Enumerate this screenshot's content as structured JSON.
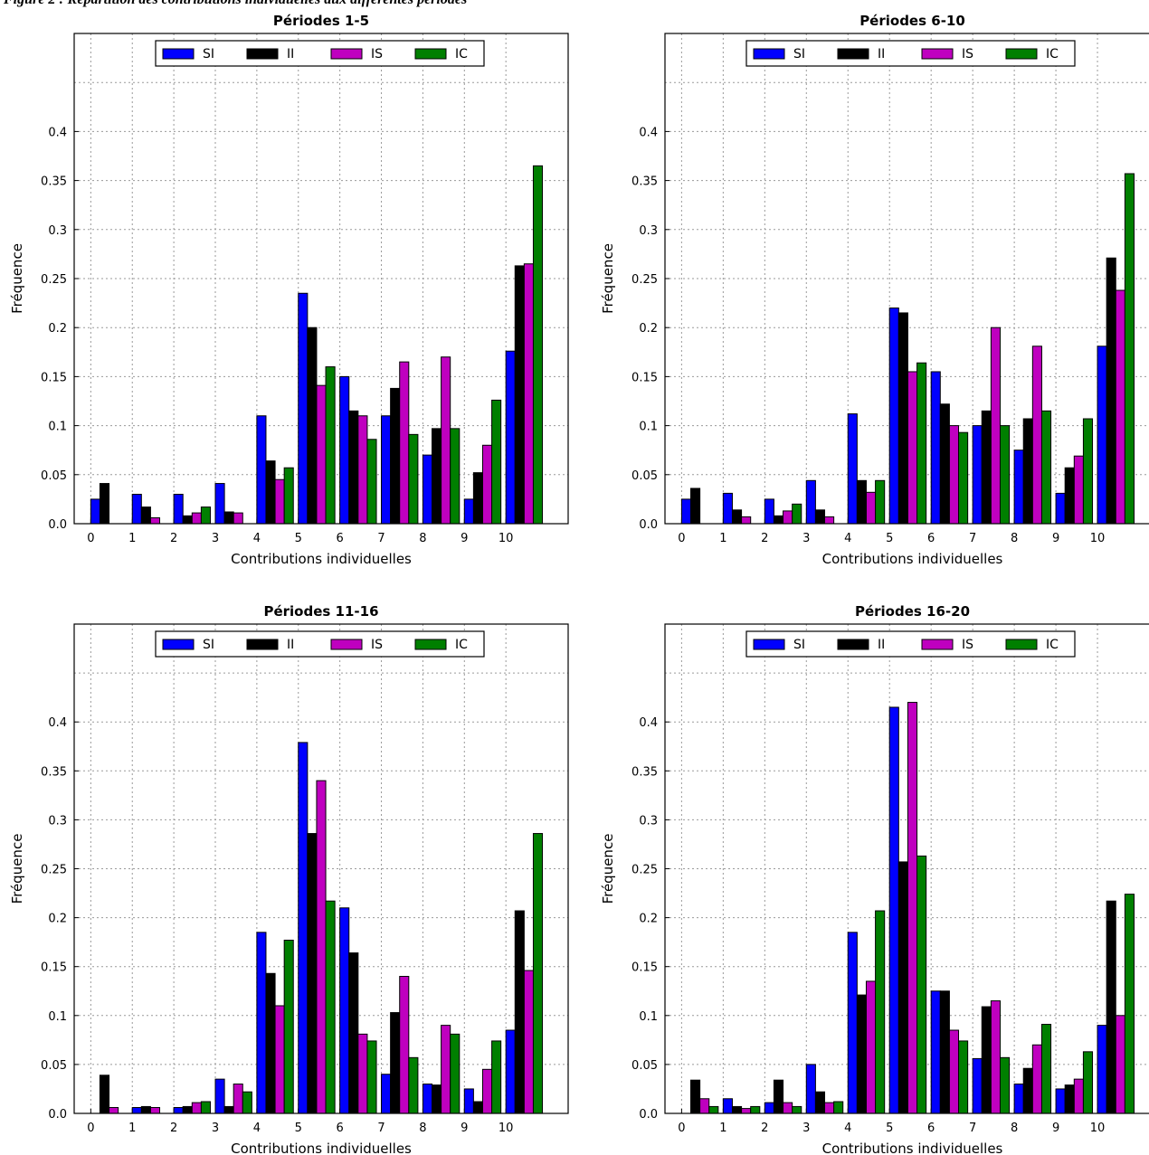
{
  "figure": {
    "caption": "Figure 2 : Répartition des contributions individuelles aux différentes périodes"
  },
  "colors": {
    "SI": "#0000ff",
    "II": "#000000",
    "IS": "#bf00bf",
    "IC": "#007f00"
  },
  "chart_data": [
    {
      "type": "bar",
      "title": "Périodes 1-5",
      "xlabel": "Contributions individuelles",
      "ylabel": "Fréquence",
      "categories": [
        "0",
        "1",
        "2",
        "3",
        "4",
        "5",
        "6",
        "7",
        "8",
        "9",
        "10"
      ],
      "xlim": [
        -0.4,
        11.5
      ],
      "ylim": [
        0,
        0.5
      ],
      "yticks": [
        "0.0",
        "0.05",
        "0.1",
        "0.15",
        "0.2",
        "0.25",
        "0.3",
        "0.35",
        "0.4"
      ],
      "grid": true,
      "legend": "top-center",
      "series": [
        {
          "name": "SI",
          "values": [
            0.025,
            0.03,
            0.03,
            0.041,
            0.11,
            0.235,
            0.15,
            0.11,
            0.07,
            0.025,
            0.176
          ]
        },
        {
          "name": "II",
          "values": [
            0.041,
            0.017,
            0.008,
            0.012,
            0.064,
            0.2,
            0.115,
            0.138,
            0.097,
            0.052,
            0.263
          ]
        },
        {
          "name": "IS",
          "values": [
            0.0,
            0.006,
            0.011,
            0.011,
            0.045,
            0.141,
            0.11,
            0.165,
            0.17,
            0.08,
            0.265
          ]
        },
        {
          "name": "IC",
          "values": [
            0.0,
            0.0,
            0.017,
            0.0,
            0.057,
            0.16,
            0.086,
            0.091,
            0.097,
            0.126,
            0.365
          ]
        }
      ]
    },
    {
      "type": "bar",
      "title": "Périodes 6-10",
      "xlabel": "Contributions individuelles",
      "ylabel": "Fréquence",
      "categories": [
        "0",
        "1",
        "2",
        "3",
        "4",
        "5",
        "6",
        "7",
        "8",
        "9",
        "10"
      ],
      "xlim": [
        -0.4,
        11.5
      ],
      "ylim": [
        0,
        0.5
      ],
      "yticks": [
        "0.0",
        "0.05",
        "0.1",
        "0.15",
        "0.2",
        "0.25",
        "0.3",
        "0.35",
        "0.4"
      ],
      "grid": true,
      "legend": "top-center",
      "series": [
        {
          "name": "SI",
          "values": [
            0.025,
            0.031,
            0.025,
            0.044,
            0.112,
            0.22,
            0.155,
            0.1,
            0.075,
            0.031,
            0.181
          ]
        },
        {
          "name": "II",
          "values": [
            0.036,
            0.014,
            0.008,
            0.014,
            0.044,
            0.215,
            0.122,
            0.115,
            0.107,
            0.057,
            0.271
          ]
        },
        {
          "name": "IS",
          "values": [
            0.0,
            0.007,
            0.013,
            0.007,
            0.032,
            0.155,
            0.1,
            0.2,
            0.181,
            0.069,
            0.238
          ]
        },
        {
          "name": "IC",
          "values": [
            0.0,
            0.0,
            0.02,
            0.0,
            0.044,
            0.164,
            0.093,
            0.1,
            0.115,
            0.107,
            0.357
          ]
        }
      ]
    },
    {
      "type": "bar",
      "title": "Périodes 11-16",
      "xlabel": "Contributions individuelles",
      "ylabel": "Fréquence",
      "categories": [
        "0",
        "1",
        "2",
        "3",
        "4",
        "5",
        "6",
        "7",
        "8",
        "9",
        "10"
      ],
      "xlim": [
        -0.4,
        11.5
      ],
      "ylim": [
        0,
        0.5
      ],
      "yticks": [
        "0.0",
        "0.05",
        "0.1",
        "0.15",
        "0.2",
        "0.25",
        "0.3",
        "0.35",
        "0.4"
      ],
      "grid": true,
      "legend": "top-center",
      "series": [
        {
          "name": "SI",
          "values": [
            0.0,
            0.006,
            0.006,
            0.035,
            0.185,
            0.379,
            0.21,
            0.04,
            0.03,
            0.025,
            0.085
          ]
        },
        {
          "name": "II",
          "values": [
            0.039,
            0.007,
            0.007,
            0.007,
            0.143,
            0.286,
            0.164,
            0.103,
            0.029,
            0.012,
            0.207
          ]
        },
        {
          "name": "IS",
          "values": [
            0.006,
            0.006,
            0.011,
            0.03,
            0.11,
            0.34,
            0.081,
            0.14,
            0.09,
            0.045,
            0.146
          ]
        },
        {
          "name": "IC",
          "values": [
            0.0,
            0.0,
            0.012,
            0.022,
            0.177,
            0.217,
            0.074,
            0.057,
            0.081,
            0.074,
            0.286
          ]
        }
      ]
    },
    {
      "type": "bar",
      "title": "Périodes 16-20",
      "xlabel": "Contributions individuelles",
      "ylabel": "Fréquence",
      "categories": [
        "0",
        "1",
        "2",
        "3",
        "4",
        "5",
        "6",
        "7",
        "8",
        "9",
        "10"
      ],
      "xlim": [
        -0.4,
        11.5
      ],
      "ylim": [
        0,
        0.5
      ],
      "yticks": [
        "0.0",
        "0.05",
        "0.1",
        "0.15",
        "0.2",
        "0.25",
        "0.3",
        "0.35",
        "0.4"
      ],
      "grid": true,
      "legend": "top-center",
      "series": [
        {
          "name": "SI",
          "values": [
            0.0,
            0.015,
            0.011,
            0.05,
            0.185,
            0.415,
            0.125,
            0.056,
            0.03,
            0.025,
            0.09
          ]
        },
        {
          "name": "II",
          "values": [
            0.034,
            0.007,
            0.034,
            0.022,
            0.121,
            0.257,
            0.125,
            0.109,
            0.046,
            0.029,
            0.217
          ]
        },
        {
          "name": "IS",
          "values": [
            0.015,
            0.005,
            0.011,
            0.011,
            0.135,
            0.42,
            0.085,
            0.115,
            0.07,
            0.035,
            0.1
          ]
        },
        {
          "name": "IC",
          "values": [
            0.007,
            0.007,
            0.007,
            0.012,
            0.207,
            0.263,
            0.074,
            0.057,
            0.091,
            0.063,
            0.224
          ]
        }
      ]
    }
  ]
}
